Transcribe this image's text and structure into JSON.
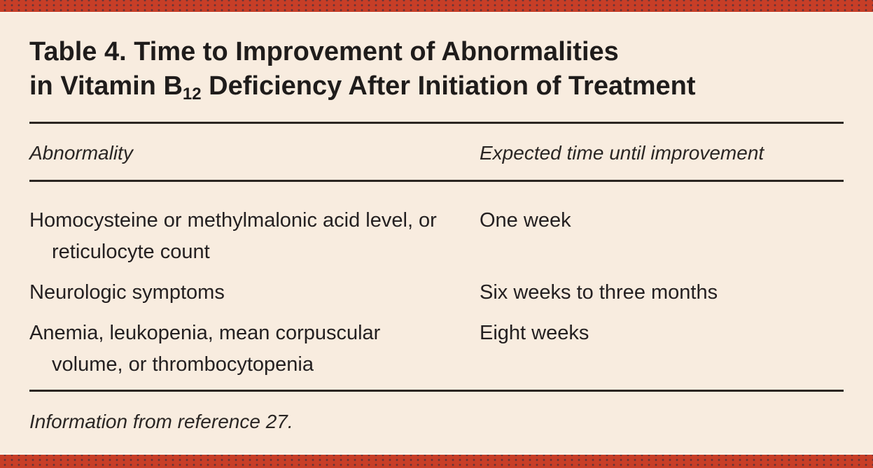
{
  "page": {
    "background_color": "#f8ecdf",
    "accent_bar_color": "#c73e27",
    "text_color": "#242021",
    "rule_color": "#2b2521"
  },
  "table": {
    "title_line1": "Table 4. Time to Improvement of Abnormalities",
    "title_line2_prefix": "in Vitamin B",
    "title_line2_subscript": "12",
    "title_line2_suffix": " Deficiency After Initiation of Treatment",
    "columns": [
      "Abnormality",
      "Expected time until improvement"
    ],
    "rows": [
      {
        "abnormality": "Homocysteine or methylmalonic acid level, or reticulocyte count",
        "time": "One week"
      },
      {
        "abnormality": "Neurologic symptoms",
        "time": "Six weeks to three months"
      },
      {
        "abnormality": "Anemia, leukopenia, mean corpuscular volume, or thrombocytopenia",
        "time": "Eight weeks"
      }
    ],
    "footnote": "Information from reference 27."
  }
}
